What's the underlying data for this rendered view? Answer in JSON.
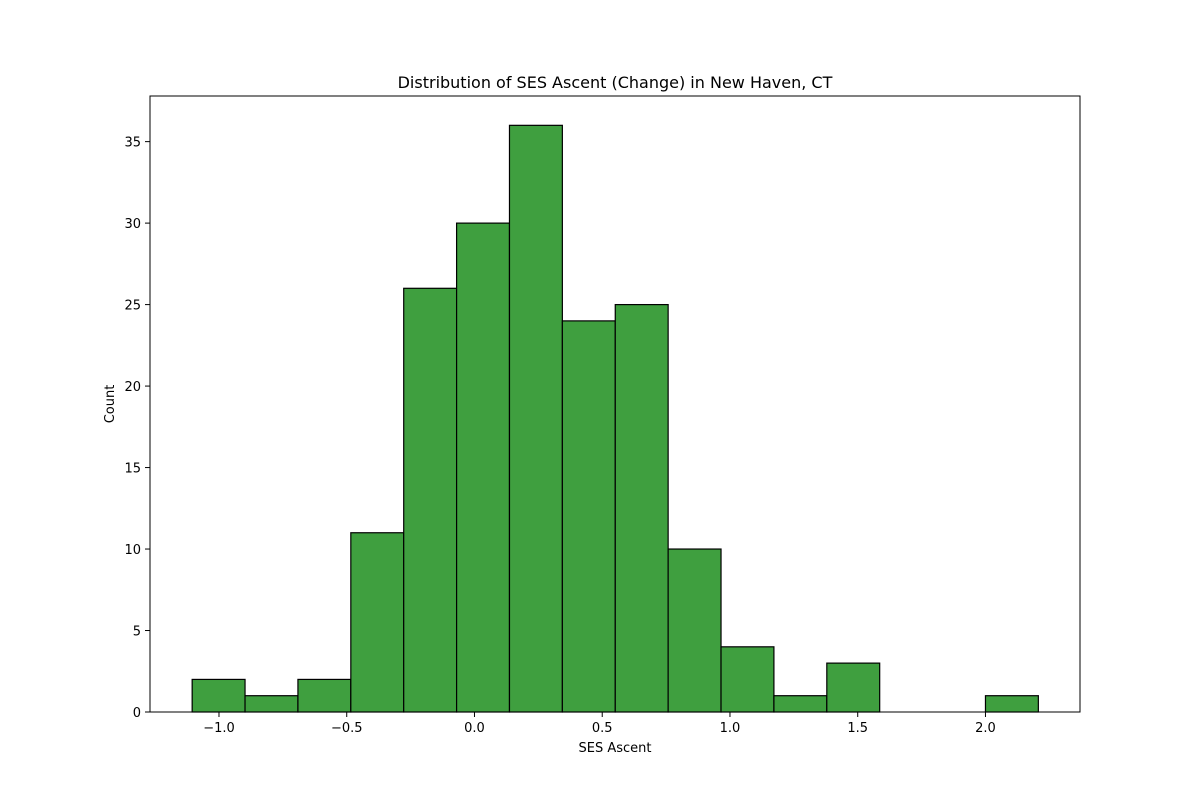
{
  "chart_data": {
    "type": "bar",
    "title": "Distribution of SES Ascent (Change) in New Haven, CT",
    "xlabel": "SES Ascent",
    "ylabel": "Count",
    "xlim": [
      -1.27,
      2.37
    ],
    "ylim": [
      0,
      37.8
    ],
    "bin_edges": [
      -1.105,
      -0.898,
      -0.691,
      -0.484,
      -0.277,
      -0.07,
      0.137,
      0.344,
      0.551,
      0.758,
      0.965,
      1.172,
      1.379,
      1.586,
      1.793,
      2.0,
      2.207
    ],
    "values": [
      2,
      1,
      2,
      11,
      26,
      30,
      36,
      24,
      25,
      10,
      4,
      1,
      3,
      0,
      0,
      1
    ],
    "x_ticks": [
      {
        "value": -1.0,
        "label": "−1.0"
      },
      {
        "value": -0.5,
        "label": "−0.5"
      },
      {
        "value": 0.0,
        "label": "0.0"
      },
      {
        "value": 0.5,
        "label": "0.5"
      },
      {
        "value": 1.0,
        "label": "1.0"
      },
      {
        "value": 1.5,
        "label": "1.5"
      },
      {
        "value": 2.0,
        "label": "2.0"
      }
    ],
    "y_ticks": [
      {
        "value": 0,
        "label": "0"
      },
      {
        "value": 5,
        "label": "5"
      },
      {
        "value": 10,
        "label": "10"
      },
      {
        "value": 15,
        "label": "15"
      },
      {
        "value": 20,
        "label": "20"
      },
      {
        "value": 25,
        "label": "25"
      },
      {
        "value": 30,
        "label": "30"
      },
      {
        "value": 35,
        "label": "35"
      }
    ],
    "grid": false,
    "bar_color": "#3f9f3f",
    "edge_color": "#000000"
  }
}
